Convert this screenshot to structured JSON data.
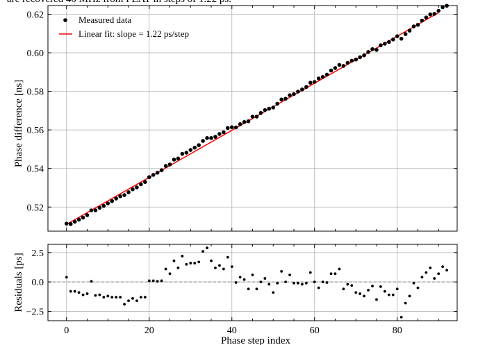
{
  "caption_fragment": "are recovered 40 MHz from FEAT in steps of 1.22 ps.",
  "chart_data": [
    {
      "type": "scatter",
      "xlabel": "",
      "ylabel": "Phase difference [ns]",
      "xlim": [
        -4.5,
        94.5
      ],
      "ylim": [
        0.5075,
        0.6245
      ],
      "xticks": [
        0,
        20,
        40,
        60,
        80
      ],
      "yticks": [
        0.52,
        0.54,
        0.56,
        0.58,
        0.6,
        0.62
      ],
      "ytick_labels": [
        "0.52",
        "0.54",
        "0.56",
        "0.58",
        "0.60",
        "0.62"
      ],
      "grid": true,
      "legend": "top-left",
      "series": [
        {
          "name": "Measured data",
          "kind": "points",
          "color": "#000000",
          "x_start": 0,
          "x_step": 1,
          "residuals_ps": [
            0.4,
            -0.8,
            -0.8,
            -0.9,
            -1.1,
            -1.0,
            0.05,
            -1.15,
            -1.1,
            -1.3,
            -1.2,
            -1.3,
            -1.3,
            -1.3,
            -1.9,
            -1.6,
            -1.4,
            -1.6,
            -1.3,
            -1.3,
            0.1,
            0.1,
            0.05,
            0.1,
            1.1,
            0.7,
            1.8,
            1.2,
            2.2,
            1.5,
            1.6,
            1.6,
            1.7,
            2.6,
            2.9,
            1.8,
            1.2,
            1.4,
            1.1,
            2.1,
            1.3,
            -0.05,
            0.4,
            0.2,
            -0.6,
            0.6,
            -0.6,
            0.0,
            0.3,
            -0.2,
            -0.9,
            -0.1,
            0.9,
            0.0,
            0.6,
            -0.1,
            -0.1,
            -0.2,
            -0.1,
            0.8,
            0.0,
            -0.5,
            0.0,
            -0.05,
            0.7,
            0.7,
            1.1,
            -0.6,
            -0.2,
            -0.3,
            -0.9,
            -1.0,
            -1.2,
            -0.7,
            -0.35,
            -1.5,
            -0.4,
            -0.8,
            -1.1,
            -1.1,
            -0.6,
            -3.0,
            -1.8,
            -1.2,
            -0.1,
            -0.5,
            0.4,
            0.8,
            1.2,
            0.3,
            0.7,
            1.3,
            1.0
          ],
          "values_ns": [
            0.5114,
            0.5112,
            0.5124,
            0.5135,
            0.5145,
            0.5158,
            0.5183,
            0.5183,
            0.5196,
            0.5206,
            0.5219,
            0.5231,
            0.5244,
            0.5256,
            0.5262,
            0.5277,
            0.5292,
            0.5302,
            0.5318,
            0.533,
            0.5355,
            0.5367,
            0.5378,
            0.5391,
            0.5413,
            0.5421,
            0.5446,
            0.5452,
            0.5476,
            0.5482,
            0.5496,
            0.5508,
            0.5521,
            0.5543,
            0.5558,
            0.5558,
            0.5564,
            0.5579,
            0.5588,
            0.561,
            0.5614,
            0.5613,
            0.563,
            0.5641,
            0.5645,
            0.5669,
            0.5669,
            0.5688,
            0.5703,
            0.571,
            0.5716,
            0.5736,
            0.5758,
            0.5762,
            0.578,
            0.5786,
            0.5799,
            0.581,
            0.5823,
            0.5845,
            0.5849,
            0.5867,
            0.5875,
            0.5887,
            0.5908,
            0.5921,
            0.5937,
            0.5932,
            0.5948,
            0.5959,
            0.5965,
            0.5977,
            0.5987,
            0.6004,
            0.6019,
            0.6015,
            0.6039,
            0.6047,
            0.6056,
            0.6069,
            0.6086,
            0.6073,
            0.6097,
            0.6115,
            0.6137,
            0.6145,
            0.6167,
            0.6183,
            0.6199,
            0.6202,
            0.6218,
            0.6236,
            0.6244
          ]
        },
        {
          "name": "Linear fit: slope = 1.22 ps/step",
          "kind": "line",
          "color": "#ff0000",
          "x": [
            0,
            90
          ],
          "y": [
            0.511,
            0.6208
          ]
        }
      ]
    },
    {
      "type": "scatter",
      "xlabel": "Phase step index",
      "ylabel": "Residuals [ps]",
      "xlim": [
        -4.5,
        94.5
      ],
      "ylim": [
        -3.3,
        3.2
      ],
      "xticks": [
        0,
        20,
        40,
        60,
        80
      ],
      "yticks": [
        -2.5,
        0.0,
        2.5
      ],
      "ytick_labels": [
        "−2.5",
        "0.0",
        "2.5"
      ],
      "zero_line": "dashed grey",
      "grid": true
    }
  ]
}
